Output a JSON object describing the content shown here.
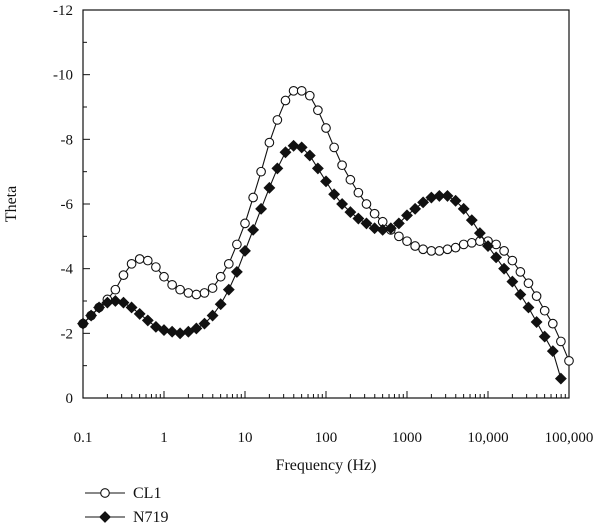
{
  "chart_data": {
    "type": "line",
    "xlabel": "Frequency (Hz)",
    "ylabel": "Theta",
    "x_scale": "log",
    "xlim": [
      0.1,
      100000
    ],
    "ylim": [
      0,
      -12
    ],
    "y_inverted": true,
    "x_ticks": [
      {
        "value": 0.1,
        "label": "0.1"
      },
      {
        "value": 1,
        "label": "1"
      },
      {
        "value": 10,
        "label": "10"
      },
      {
        "value": 100,
        "label": "100"
      },
      {
        "value": 1000,
        "label": "1000"
      },
      {
        "value": 10000,
        "label": "10,000"
      },
      {
        "value": 100000,
        "label": "100,000"
      }
    ],
    "y_ticks": [
      {
        "value": 0,
        "label": "0"
      },
      {
        "value": -2,
        "label": "-2"
      },
      {
        "value": -4,
        "label": "-4"
      },
      {
        "value": -6,
        "label": "-6"
      },
      {
        "value": -8,
        "label": "-8"
      },
      {
        "value": -10,
        "label": "-10"
      },
      {
        "value": -12,
        "label": "-12"
      }
    ],
    "grid": false,
    "legend_position": "bottom-left, below plot",
    "series": [
      {
        "name": "CL1",
        "marker": "open-circle",
        "color": "#111111",
        "points": [
          [
            0.1,
            -2.3
          ],
          [
            0.126,
            -2.55
          ],
          [
            0.158,
            -2.8
          ],
          [
            0.2,
            -3.05
          ],
          [
            0.251,
            -3.35
          ],
          [
            0.316,
            -3.8
          ],
          [
            0.398,
            -4.15
          ],
          [
            0.501,
            -4.3
          ],
          [
            0.631,
            -4.25
          ],
          [
            0.794,
            -4.05
          ],
          [
            1.0,
            -3.75
          ],
          [
            1.26,
            -3.5
          ],
          [
            1.58,
            -3.35
          ],
          [
            2.0,
            -3.25
          ],
          [
            2.51,
            -3.2
          ],
          [
            3.16,
            -3.25
          ],
          [
            3.98,
            -3.4
          ],
          [
            5.01,
            -3.75
          ],
          [
            6.31,
            -4.15
          ],
          [
            7.94,
            -4.75
          ],
          [
            10.0,
            -5.4
          ],
          [
            12.6,
            -6.2
          ],
          [
            15.8,
            -7.0
          ],
          [
            20.0,
            -7.9
          ],
          [
            25.1,
            -8.6
          ],
          [
            31.6,
            -9.2
          ],
          [
            39.8,
            -9.5
          ],
          [
            50.1,
            -9.5
          ],
          [
            63.1,
            -9.35
          ],
          [
            79.4,
            -8.9
          ],
          [
            100,
            -8.35
          ],
          [
            126,
            -7.75
          ],
          [
            158,
            -7.2
          ],
          [
            200,
            -6.75
          ],
          [
            251,
            -6.35
          ],
          [
            316,
            -6.0
          ],
          [
            398,
            -5.7
          ],
          [
            501,
            -5.45
          ],
          [
            631,
            -5.2
          ],
          [
            794,
            -5.0
          ],
          [
            1000,
            -4.85
          ],
          [
            1260,
            -4.7
          ],
          [
            1580,
            -4.6
          ],
          [
            2000,
            -4.55
          ],
          [
            2510,
            -4.55
          ],
          [
            3160,
            -4.6
          ],
          [
            3980,
            -4.65
          ],
          [
            5010,
            -4.75
          ],
          [
            6310,
            -4.8
          ],
          [
            7940,
            -4.85
          ],
          [
            10000,
            -4.85
          ],
          [
            12600,
            -4.75
          ],
          [
            15800,
            -4.55
          ],
          [
            20000,
            -4.25
          ],
          [
            25100,
            -3.9
          ],
          [
            31600,
            -3.55
          ],
          [
            39800,
            -3.15
          ],
          [
            50100,
            -2.7
          ],
          [
            63100,
            -2.3
          ],
          [
            79400,
            -1.75
          ],
          [
            100000,
            -1.15
          ]
        ]
      },
      {
        "name": "N719",
        "marker": "filled-diamond",
        "color": "#111111",
        "points": [
          [
            0.1,
            -2.3
          ],
          [
            0.126,
            -2.55
          ],
          [
            0.158,
            -2.8
          ],
          [
            0.2,
            -2.95
          ],
          [
            0.251,
            -3.0
          ],
          [
            0.316,
            -2.95
          ],
          [
            0.398,
            -2.8
          ],
          [
            0.501,
            -2.6
          ],
          [
            0.631,
            -2.4
          ],
          [
            0.794,
            -2.2
          ],
          [
            1.0,
            -2.1
          ],
          [
            1.26,
            -2.05
          ],
          [
            1.58,
            -2.0
          ],
          [
            2.0,
            -2.05
          ],
          [
            2.51,
            -2.15
          ],
          [
            3.16,
            -2.3
          ],
          [
            3.98,
            -2.55
          ],
          [
            5.01,
            -2.9
          ],
          [
            6.31,
            -3.35
          ],
          [
            7.94,
            -3.9
          ],
          [
            10.0,
            -4.55
          ],
          [
            12.6,
            -5.2
          ],
          [
            15.8,
            -5.85
          ],
          [
            20.0,
            -6.5
          ],
          [
            25.1,
            -7.1
          ],
          [
            31.6,
            -7.6
          ],
          [
            39.8,
            -7.8
          ],
          [
            50.1,
            -7.75
          ],
          [
            63.1,
            -7.5
          ],
          [
            79.4,
            -7.1
          ],
          [
            100,
            -6.7
          ],
          [
            126,
            -6.3
          ],
          [
            158,
            -6.0
          ],
          [
            200,
            -5.75
          ],
          [
            251,
            -5.55
          ],
          [
            316,
            -5.4
          ],
          [
            398,
            -5.25
          ],
          [
            501,
            -5.2
          ],
          [
            631,
            -5.25
          ],
          [
            794,
            -5.4
          ],
          [
            1000,
            -5.65
          ],
          [
            1260,
            -5.85
          ],
          [
            1580,
            -6.05
          ],
          [
            2000,
            -6.2
          ],
          [
            2510,
            -6.25
          ],
          [
            3160,
            -6.25
          ],
          [
            3980,
            -6.1
          ],
          [
            5010,
            -5.85
          ],
          [
            6310,
            -5.5
          ],
          [
            7940,
            -5.1
          ],
          [
            10000,
            -4.7
          ],
          [
            12600,
            -4.35
          ],
          [
            15800,
            -4.0
          ],
          [
            20000,
            -3.6
          ],
          [
            25100,
            -3.2
          ],
          [
            31600,
            -2.8
          ],
          [
            39800,
            -2.35
          ],
          [
            50100,
            -1.9
          ],
          [
            63100,
            -1.45
          ],
          [
            79400,
            -0.6
          ]
        ]
      }
    ]
  }
}
